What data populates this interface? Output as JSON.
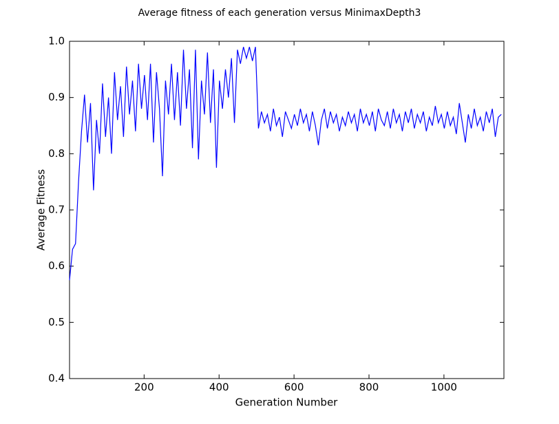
{
  "chart_data": {
    "type": "line",
    "title": "Average fitness of each generation versus MinimaxDepth3",
    "x_label": "Generation Number",
    "y_label": "Average Fitness",
    "x": [
      1,
      9,
      17,
      25,
      33,
      41,
      49,
      57,
      65,
      73,
      81,
      89,
      97,
      105,
      113,
      121,
      129,
      137,
      145,
      153,
      161,
      169,
      177,
      185,
      193,
      201,
      209,
      217,
      225,
      233,
      241,
      249,
      257,
      265,
      273,
      281,
      289,
      297,
      305,
      313,
      321,
      329,
      337,
      345,
      353,
      361,
      369,
      377,
      385,
      393,
      401,
      409,
      417,
      425,
      433,
      441,
      449,
      457,
      465,
      473,
      481,
      489,
      497,
      505,
      513,
      521,
      529,
      537,
      545,
      553,
      561,
      569,
      577,
      585,
      593,
      601,
      609,
      617,
      625,
      633,
      641,
      649,
      657,
      665,
      673,
      681,
      689,
      697,
      705,
      713,
      721,
      729,
      737,
      745,
      753,
      761,
      769,
      777,
      785,
      793,
      801,
      809,
      817,
      825,
      833,
      841,
      849,
      857,
      865,
      873,
      881,
      889,
      897,
      905,
      913,
      921,
      929,
      937,
      945,
      953,
      961,
      969,
      977,
      985,
      993,
      1001,
      1009,
      1017,
      1025,
      1033,
      1041,
      1049,
      1057,
      1065,
      1073,
      1081,
      1089,
      1097,
      1105,
      1113,
      1121,
      1129,
      1137,
      1145,
      1153
    ],
    "series": [
      {
        "color": "#0000ff",
        "values": [
          0.575,
          0.63,
          0.64,
          0.75,
          0.84,
          0.905,
          0.82,
          0.89,
          0.735,
          0.86,
          0.8,
          0.925,
          0.83,
          0.9,
          0.8,
          0.945,
          0.86,
          0.92,
          0.83,
          0.955,
          0.87,
          0.93,
          0.84,
          0.96,
          0.88,
          0.94,
          0.86,
          0.96,
          0.82,
          0.945,
          0.88,
          0.76,
          0.93,
          0.87,
          0.96,
          0.86,
          0.945,
          0.85,
          0.985,
          0.88,
          0.95,
          0.81,
          0.985,
          0.79,
          0.93,
          0.87,
          0.98,
          0.855,
          0.95,
          0.775,
          0.93,
          0.88,
          0.95,
          0.9,
          0.97,
          0.855,
          0.985,
          0.96,
          0.99,
          0.97,
          0.99,
          0.965,
          0.99,
          0.845,
          0.875,
          0.855,
          0.87,
          0.84,
          0.88,
          0.85,
          0.865,
          0.83,
          0.875,
          0.86,
          0.845,
          0.87,
          0.85,
          0.88,
          0.855,
          0.87,
          0.84,
          0.875,
          0.85,
          0.815,
          0.86,
          0.88,
          0.845,
          0.875,
          0.855,
          0.87,
          0.84,
          0.865,
          0.85,
          0.875,
          0.855,
          0.87,
          0.84,
          0.88,
          0.855,
          0.87,
          0.85,
          0.875,
          0.84,
          0.88,
          0.86,
          0.85,
          0.875,
          0.845,
          0.88,
          0.855,
          0.87,
          0.84,
          0.875,
          0.855,
          0.88,
          0.845,
          0.87,
          0.855,
          0.875,
          0.84,
          0.865,
          0.85,
          0.885,
          0.855,
          0.87,
          0.845,
          0.875,
          0.85,
          0.865,
          0.835,
          0.89,
          0.855,
          0.82,
          0.87,
          0.845,
          0.88,
          0.85,
          0.865,
          0.84,
          0.875,
          0.855,
          0.88,
          0.83,
          0.865,
          0.87
        ]
      }
    ],
    "xlim": [
      1,
      1160
    ],
    "ylim": [
      0.4,
      1
    ],
    "xticks": [
      200,
      400,
      600,
      800,
      1000
    ],
    "yticks": [
      0.4,
      0.5,
      0.6,
      0.7,
      0.8,
      0.9,
      {
        "value": 1,
        "label": "1.0"
      }
    ]
  }
}
